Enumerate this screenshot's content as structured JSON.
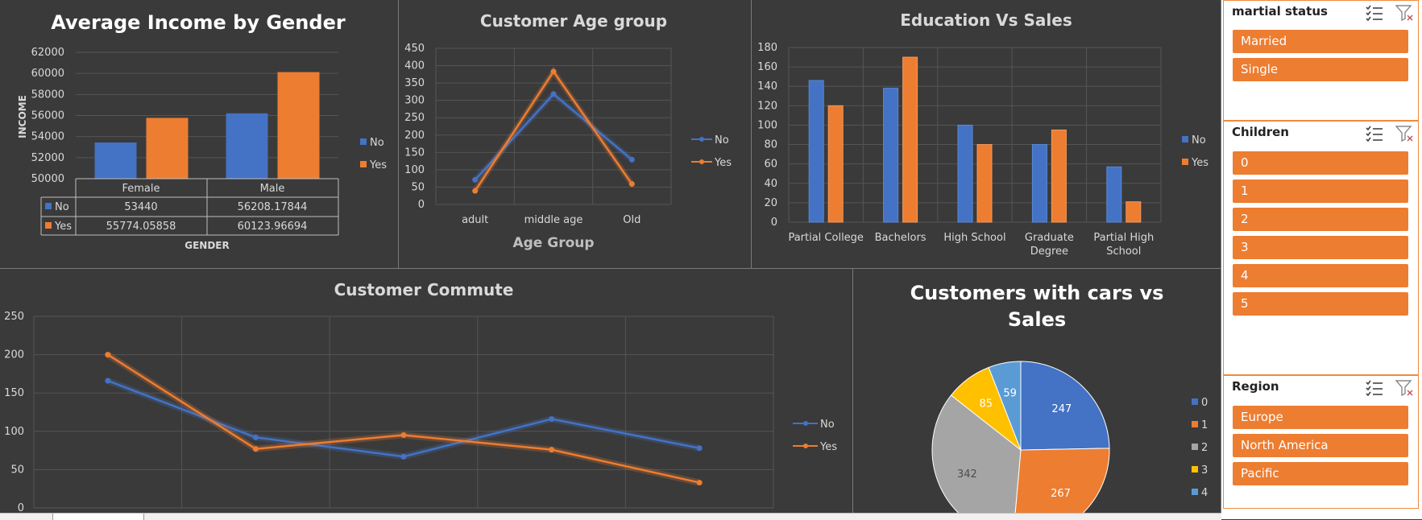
{
  "charts": {
    "income": {
      "title": "Average Income by Gender",
      "ylabel": "INCOME",
      "xlabel": "GENDER",
      "yticks": [
        "62000",
        "60000",
        "58000",
        "56000",
        "54000",
        "52000",
        "50000"
      ],
      "legend": [
        "No",
        "Yes"
      ],
      "table": {
        "headers": [
          "Female",
          "Male"
        ],
        "rows": [
          {
            "label": "No",
            "cells": [
              "53440",
              "56208.17844"
            ]
          },
          {
            "label": "Yes",
            "cells": [
              "55774.05858",
              "60123.96694"
            ]
          }
        ]
      }
    },
    "age": {
      "title": "Customer Age group",
      "xlabel": "Age Group",
      "yticks": [
        "450",
        "400",
        "350",
        "300",
        "250",
        "200",
        "150",
        "100",
        "50",
        "0"
      ],
      "legend": [
        "No",
        "Yes"
      ]
    },
    "education": {
      "title": "Education Vs Sales",
      "yticks": [
        "180",
        "160",
        "140",
        "120",
        "100",
        "80",
        "60",
        "40",
        "20",
        "0"
      ],
      "categories": [
        [
          "Partial College"
        ],
        [
          "Bachelors"
        ],
        [
          "High School"
        ],
        [
          "Graduate",
          "Degree"
        ],
        [
          "Partial High",
          "School"
        ]
      ],
      "legend": [
        "No",
        "Yes"
      ]
    },
    "commute": {
      "title": "Customer Commute",
      "yticks": [
        "250",
        "200",
        "150",
        "100",
        "50",
        "0"
      ],
      "legend": [
        "No",
        "Yes"
      ]
    },
    "cars": {
      "title_lines": [
        "Customers with cars vs",
        "Sales"
      ],
      "labels": [
        "247",
        "267",
        "342",
        "85",
        "59"
      ],
      "legend": [
        "0",
        "1",
        "2",
        "3",
        "4"
      ]
    }
  },
  "chart_data": [
    {
      "type": "bar",
      "title": "Average Income by Gender",
      "xlabel": "GENDER",
      "ylabel": "INCOME",
      "categories": [
        "Female",
        "Male"
      ],
      "ylim": [
        50000,
        62000
      ],
      "series": [
        {
          "name": "No",
          "values": [
            53440,
            56208.17844
          ]
        },
        {
          "name": "Yes",
          "values": [
            55774.05858,
            60123.96694
          ]
        }
      ]
    },
    {
      "type": "line",
      "title": "Customer Age group",
      "xlabel": "Age Group",
      "categories": [
        "adult",
        "middle age",
        "Old"
      ],
      "ylim": [
        0,
        450
      ],
      "series": [
        {
          "name": "No",
          "values": [
            71,
            318,
            129
          ]
        },
        {
          "name": "Yes",
          "values": [
            39,
            383,
            59
          ]
        }
      ]
    },
    {
      "type": "bar",
      "title": "Education Vs Sales",
      "categories": [
        "Partial College",
        "Bachelors",
        "High School",
        "Graduate Degree",
        "Partial High School"
      ],
      "ylim": [
        0,
        180
      ],
      "series": [
        {
          "name": "No",
          "values": [
            146,
            138,
            100,
            80,
            57
          ]
        },
        {
          "name": "Yes",
          "values": [
            120,
            170,
            80,
            95,
            21
          ]
        }
      ]
    },
    {
      "type": "line",
      "title": "Customer Commute",
      "x": [
        1,
        2,
        3,
        4,
        5
      ],
      "ylim": [
        0,
        250
      ],
      "series": [
        {
          "name": "No",
          "values": [
            166,
            92,
            67,
            116,
            78
          ]
        },
        {
          "name": "Yes",
          "values": [
            200,
            77,
            95,
            76,
            33
          ]
        }
      ]
    },
    {
      "type": "pie",
      "title": "Customers with cars vs Sales",
      "categories": [
        "0",
        "1",
        "2",
        "3",
        "4"
      ],
      "values": [
        247,
        267,
        342,
        85,
        59
      ],
      "colors": [
        "#4472c4",
        "#ed7d31",
        "#a5a5a5",
        "#ffc000",
        "#5b9bd5"
      ]
    }
  ],
  "slicers": [
    {
      "title": "martial status",
      "items": [
        "Married",
        "Single"
      ]
    },
    {
      "title": "Children",
      "items": [
        "0",
        "1",
        "2",
        "3",
        "4",
        "5"
      ]
    },
    {
      "title": "Region",
      "items": [
        "Europe",
        "North America",
        "Pacific"
      ]
    }
  ],
  "colors": {
    "no": "#4472c4",
    "yes": "#ed7d31",
    "panel": "#3a3a3a",
    "slicer_item": "#ed7d31"
  }
}
